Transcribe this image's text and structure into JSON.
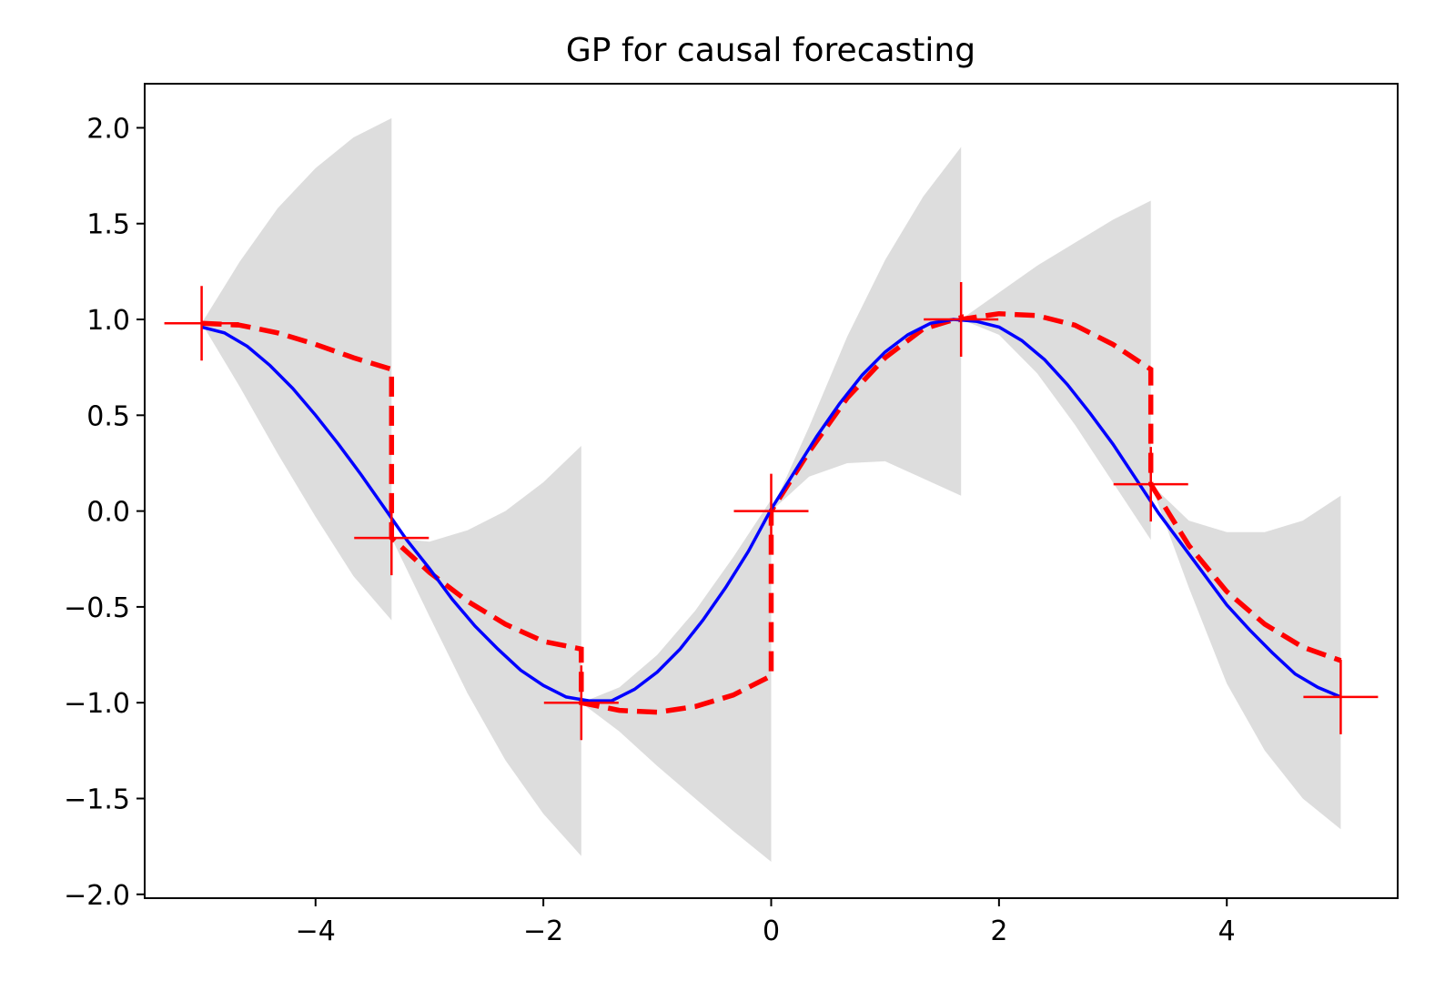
{
  "chart_data": {
    "type": "line",
    "title": "GP for causal forecasting",
    "xlabel": "",
    "ylabel": "",
    "xlim": [
      -5.5,
      5.5
    ],
    "ylim": [
      -2.02,
      2.23
    ],
    "x_ticks": [
      -4,
      -2,
      0,
      2,
      4
    ],
    "x_tick_labels": [
      "−4",
      "−2",
      "0",
      "2",
      "4"
    ],
    "y_ticks": [
      2.0,
      1.5,
      1.0,
      0.5,
      0.0,
      -0.5,
      -1.0,
      -1.5,
      -2.0
    ],
    "y_tick_labels": [
      "2.0",
      "1.5",
      "1.0",
      "0.5",
      "0.0",
      "−0.5",
      "−1.0",
      "−1.5",
      "−2.0"
    ],
    "grid": false,
    "colors": {
      "true_function": "#0000ff",
      "prediction": "#ff0000",
      "observations": "#ff0000",
      "band": "#dddddd"
    },
    "true_function": {
      "x": [
        -5.0,
        -4.8,
        -4.6,
        -4.4,
        -4.2,
        -4.0,
        -3.8,
        -3.6,
        -3.4,
        -3.2,
        -3.0,
        -2.8,
        -2.6,
        -2.4,
        -2.2,
        -2.0,
        -1.8,
        -1.6,
        -1.4,
        -1.2,
        -1.0,
        -0.8,
        -0.6,
        -0.4,
        -0.2,
        0.0,
        0.2,
        0.4,
        0.6,
        0.8,
        1.0,
        1.2,
        1.4,
        1.6,
        1.8,
        2.0,
        2.2,
        2.4,
        2.6,
        2.8,
        3.0,
        3.2,
        3.4,
        3.6,
        3.8,
        4.0,
        4.2,
        4.4,
        4.6,
        4.8,
        5.0
      ],
      "y": [
        0.96,
        0.93,
        0.86,
        0.76,
        0.64,
        0.5,
        0.35,
        0.19,
        0.02,
        -0.15,
        -0.3,
        -0.46,
        -0.6,
        -0.72,
        -0.83,
        -0.91,
        -0.97,
        -0.99,
        -0.99,
        -0.93,
        -0.84,
        -0.72,
        -0.57,
        -0.4,
        -0.21,
        0.01,
        0.2,
        0.39,
        0.56,
        0.71,
        0.83,
        0.92,
        0.98,
        1.0,
        0.99,
        0.96,
        0.89,
        0.79,
        0.66,
        0.51,
        0.35,
        0.17,
        -0.01,
        -0.17,
        -0.33,
        -0.49,
        -0.62,
        -0.74,
        -0.85,
        -0.92,
        -0.97
      ]
    },
    "observations": {
      "x": [
        -5.0,
        -3.333,
        -1.667,
        0.0,
        1.667,
        3.333,
        5.0
      ],
      "y": [
        0.98,
        -0.14,
        -1.0,
        0.0,
        1.0,
        0.14,
        -0.97
      ]
    },
    "segments": [
      {
        "x0": -5.0,
        "x1": -3.333,
        "mean": [
          0.98,
          0.97,
          0.93,
          0.87,
          0.8,
          0.74
        ],
        "lower": [
          0.98,
          0.65,
          0.3,
          -0.03,
          -0.34,
          -0.57
        ],
        "upper": [
          0.98,
          1.3,
          1.58,
          1.79,
          1.95,
          2.05
        ]
      },
      {
        "x0": -3.333,
        "x1": -1.667,
        "mean": [
          -0.14,
          -0.32,
          -0.47,
          -0.59,
          -0.68,
          -0.72
        ],
        "lower": [
          -0.14,
          -0.55,
          -0.95,
          -1.3,
          -1.58,
          -1.8
        ],
        "upper": [
          -0.14,
          -0.16,
          -0.1,
          0.0,
          0.15,
          0.34
        ]
      },
      {
        "x0": -1.667,
        "x1": 0.0,
        "mean": [
          -1.0,
          -1.04,
          -1.05,
          -1.02,
          -0.96,
          -0.86
        ],
        "lower": [
          -1.0,
          -1.15,
          -1.33,
          -1.5,
          -1.67,
          -1.83
        ],
        "upper": [
          -1.0,
          -0.92,
          -0.75,
          -0.52,
          -0.24,
          0.06
        ]
      },
      {
        "x0": 0.0,
        "x1": 1.667,
        "mean": [
          0.0,
          0.31,
          0.59,
          0.8,
          0.95,
          1.01
        ],
        "lower": [
          0.0,
          0.18,
          0.25,
          0.26,
          0.17,
          0.08
        ],
        "upper": [
          0.0,
          0.44,
          0.91,
          1.31,
          1.64,
          1.9
        ]
      },
      {
        "x0": 1.667,
        "x1": 3.333,
        "mean": [
          1.0,
          1.03,
          1.02,
          0.97,
          0.87,
          0.74
        ],
        "lower": [
          1.0,
          0.92,
          0.72,
          0.45,
          0.15,
          -0.15
        ],
        "upper": [
          1.0,
          1.14,
          1.28,
          1.4,
          1.52,
          1.62
        ]
      },
      {
        "x0": 3.333,
        "x1": 5.0,
        "mean": [
          0.14,
          -0.18,
          -0.42,
          -0.59,
          -0.71,
          -0.78
        ],
        "lower": [
          0.14,
          -0.4,
          -0.9,
          -1.25,
          -1.5,
          -1.66
        ],
        "upper": [
          0.14,
          -0.05,
          -0.11,
          -0.11,
          -0.05,
          0.08
        ]
      }
    ]
  }
}
